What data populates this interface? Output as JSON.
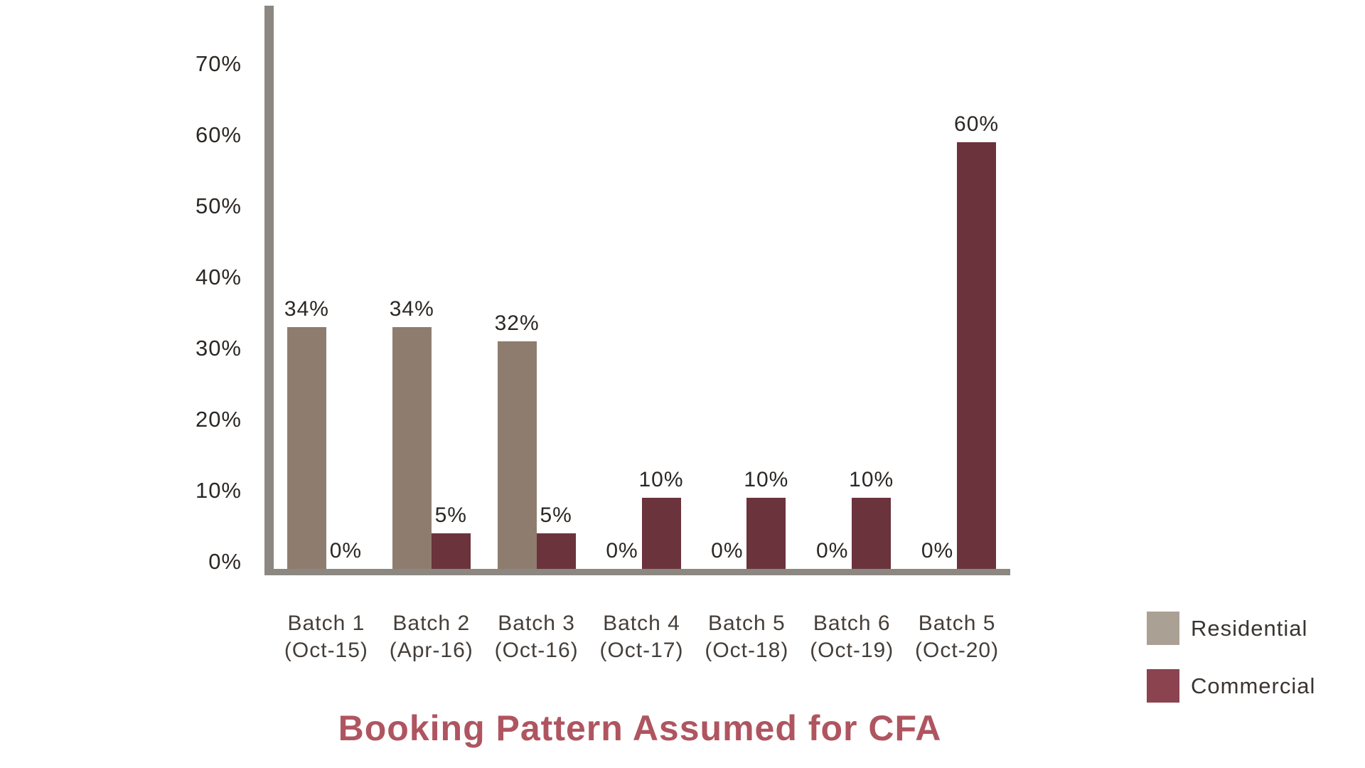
{
  "chart_data": {
    "type": "bar",
    "title": "Booking Pattern Assumed for CFA",
    "title_color": "#AF5560",
    "axis_color": "#8C8781",
    "background_color": "#FFFFFF",
    "grid": false,
    "ylim": [
      0,
      70
    ],
    "y_tick_interval": 10,
    "y_ticks": [
      "70%",
      "60%",
      "50%",
      "40%",
      "30%",
      "20%",
      "10%",
      "0%"
    ],
    "categories": [
      {
        "line1": "Batch 1",
        "line2": "(Oct-15)"
      },
      {
        "line1": "Batch 2",
        "line2": "(Apr-16)"
      },
      {
        "line1": "Batch 3",
        "line2": "(Oct-16)"
      },
      {
        "line1": "Batch 4",
        "line2": "(Oct-17)"
      },
      {
        "line1": "Batch 5",
        "line2": "(Oct-18)"
      },
      {
        "line1": "Batch 6",
        "line2": "(Oct-19)"
      },
      {
        "line1": "Batch 5",
        "line2": "(Oct-20)"
      }
    ],
    "series": [
      {
        "name": "Residential",
        "color": "#8E7D6E",
        "values": [
          34,
          34,
          32,
          0,
          0,
          0,
          0
        ],
        "data_labels": [
          "34%",
          "34%",
          "32%",
          "0%",
          "0%",
          "0%",
          "0%"
        ]
      },
      {
        "name": "Commercial",
        "color": "#6B333C",
        "values": [
          0,
          5,
          5,
          10,
          10,
          10,
          60
        ],
        "data_labels": [
          "0%",
          "5%",
          "5%",
          "10%",
          "10%",
          "10%",
          "60%"
        ]
      }
    ],
    "legend": {
      "position": "right-bottom",
      "items": [
        {
          "label": "Residential",
          "color": "#ABA094"
        },
        {
          "label": "Commercial",
          "color": "#8B4350"
        }
      ]
    }
  }
}
